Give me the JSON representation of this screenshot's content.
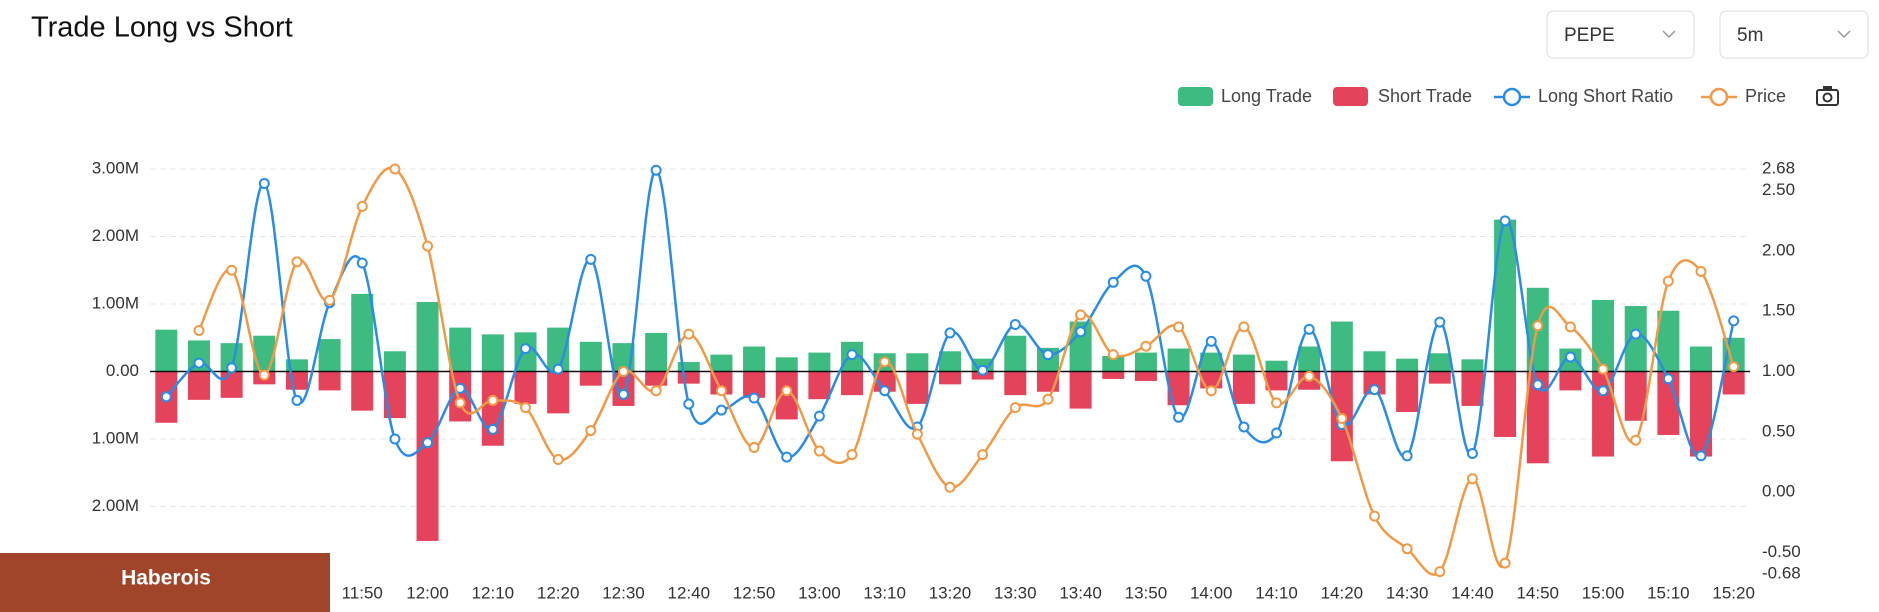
{
  "controls": [
    "PEPE",
    "5m"
  ],
  "overlay_label": "Haberois",
  "chart_data": {
    "type": "bar",
    "title": "Trade Long vs Short",
    "categories": [
      null,
      null,
      null,
      null,
      null,
      null,
      "11:50",
      null,
      "12:00",
      null,
      "12:10",
      null,
      "12:20",
      null,
      "12:30",
      null,
      "12:40",
      null,
      "12:50",
      null,
      "13:00",
      null,
      "13:10",
      null,
      "13:20",
      null,
      "13:30",
      null,
      "13:40",
      null,
      "13:50",
      null,
      "14:00",
      null,
      "14:10",
      null,
      "14:20",
      null,
      "14:30",
      null,
      "14:40",
      null,
      "14:50",
      null,
      "15:00",
      null,
      "15:10",
      null,
      "15:20"
    ],
    "series": [
      {
        "name": "Long Trade",
        "type": "bar",
        "color": "#3dbb80",
        "values": [
          620000,
          460000,
          420000,
          530000,
          180000,
          480000,
          1150000,
          300000,
          1030000,
          650000,
          550000,
          580000,
          650000,
          440000,
          420000,
          570000,
          140000,
          250000,
          370000,
          210000,
          280000,
          440000,
          270000,
          270000,
          300000,
          190000,
          530000,
          350000,
          740000,
          230000,
          280000,
          340000,
          280000,
          250000,
          160000,
          370000,
          740000,
          300000,
          190000,
          270000,
          180000,
          2250000,
          1240000,
          340000,
          1060000,
          970000,
          900000,
          370000,
          500000
        ]
      },
      {
        "name": "Short Trade",
        "type": "bar",
        "color": "#e4435b",
        "values": [
          -760000,
          -420000,
          -390000,
          -190000,
          -270000,
          -280000,
          -580000,
          -690000,
          -2510000,
          -740000,
          -1100000,
          -480000,
          -620000,
          -210000,
          -510000,
          -210000,
          -180000,
          -340000,
          -390000,
          -710000,
          -410000,
          -350000,
          -300000,
          -480000,
          -190000,
          -120000,
          -350000,
          -300000,
          -550000,
          -110000,
          -140000,
          -500000,
          -250000,
          -480000,
          -280000,
          -270000,
          -1330000,
          -340000,
          -600000,
          -180000,
          -510000,
          -970000,
          -1360000,
          -280000,
          -1260000,
          -730000,
          -940000,
          -1260000,
          -340000
        ]
      },
      {
        "name": "Long Short Ratio",
        "type": "line",
        "axis": "y2",
        "color": "#2a8ce2",
        "values": [
          0.79,
          1.07,
          1.03,
          2.56,
          0.76,
          1.57,
          1.9,
          0.44,
          0.41,
          0.86,
          0.52,
          1.19,
          1.02,
          1.93,
          0.81,
          2.67,
          0.73,
          0.68,
          0.78,
          0.29,
          0.63,
          1.14,
          0.84,
          0.54,
          1.32,
          1.01,
          1.39,
          1.14,
          1.33,
          1.74,
          1.79,
          0.62,
          1.25,
          0.54,
          0.49,
          1.35,
          0.56,
          0.85,
          0.3,
          1.41,
          0.32,
          2.25,
          0.89,
          1.12,
          0.84,
          1.31,
          0.94,
          0.3,
          1.42
        ]
      },
      {
        "name": "Price",
        "type": "line",
        "axis": "y2",
        "color": "#f09a48",
        "values": [
          null,
          1.34,
          1.84,
          0.97,
          1.91,
          1.59,
          2.37,
          2.68,
          2.04,
          0.74,
          0.76,
          0.7,
          0.27,
          0.51,
          1.0,
          0.84,
          1.31,
          0.84,
          0.37,
          0.84,
          0.34,
          0.31,
          1.08,
          0.48,
          0.04,
          0.31,
          0.7,
          0.77,
          1.47,
          1.14,
          1.21,
          1.37,
          0.84,
          1.37,
          0.74,
          0.96,
          0.61,
          -0.2,
          -0.47,
          -0.66,
          0.11,
          -0.59,
          1.38,
          1.37,
          1.02,
          0.43,
          1.75,
          1.83,
          1.04
        ]
      }
    ],
    "ylim": [
      -3000000,
      3000000
    ],
    "yticks": [
      {
        "value": 3000000,
        "label": "3.00M"
      },
      {
        "value": 2000000,
        "label": "2.00M"
      },
      {
        "value": 1000000,
        "label": "1.00M"
      },
      {
        "value": 0,
        "label": "0.00"
      },
      {
        "value": -1000000,
        "label": "1.00M"
      },
      {
        "value": -2000000,
        "label": "2.00M"
      }
    ],
    "y2lim": [
      -0.68,
      2.68
    ],
    "y2ticks": [
      2.68,
      {
        "value": 2.5,
        "label": "2.50"
      },
      {
        "value": 2,
        "label": "2.00"
      },
      {
        "value": 1.5,
        "label": "1.50"
      },
      {
        "value": 1,
        "label": "1.00"
      },
      {
        "value": 0.5,
        "label": "0.50"
      },
      {
        "value": 0,
        "label": "0.00"
      },
      {
        "value": -0.5,
        "label": "-0.50"
      },
      -0.68
    ],
    "grid": true,
    "legend": "top-right"
  }
}
